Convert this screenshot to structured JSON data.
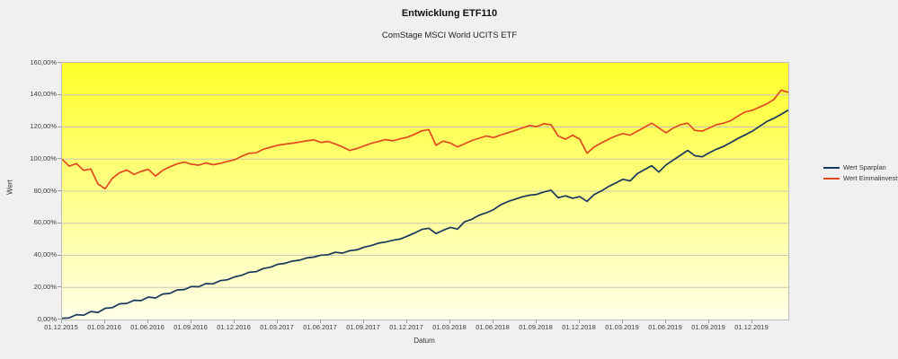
{
  "chart_data": {
    "type": "line",
    "title": "Entwicklung ETF110",
    "subtitle": "ComStage MSCI World UCITS ETF",
    "xlabel": "Datum",
    "ylabel": "Wert",
    "ylim": [
      0,
      160
    ],
    "grid": "horizontal-only",
    "legend_position": "right",
    "gridline_color": "#c9c9b8",
    "plot_background": {
      "top": "#ffff28",
      "bottom": "#ffffe8"
    },
    "y_tick_values": [
      0,
      20,
      40,
      60,
      80,
      100,
      120,
      140,
      160
    ],
    "y_tick_labels": [
      "0,00%",
      "20,00%",
      "40,00%",
      "60,00%",
      "80,00%",
      "100,00%",
      "120,00%",
      "140,00%",
      "160,00%"
    ],
    "x_tick_months": [
      0,
      3,
      6,
      9,
      12,
      15,
      18,
      21,
      24,
      27,
      30,
      33,
      36,
      39,
      42,
      45,
      48
    ],
    "x_tick_labels": [
      "01.12.2015",
      "01.03.2016",
      "01.06.2016",
      "01.09.2016",
      "01.12.2016",
      "01.03.2017",
      "01.06.2017",
      "01.09.2017",
      "01.12.2017",
      "01.03.2018",
      "01.06.2018",
      "01.09.2018",
      "01.12.2018",
      "01.03.2019",
      "01.06.2019",
      "01.09.2019",
      "01.12.2019"
    ],
    "x_unit": "months since 01.12.2015",
    "x_step": 0.5,
    "x_max": 50.5,
    "series": [
      {
        "id": "sparplan",
        "name": "Wert Sparplan",
        "color": "#17375d",
        "values": [
          0.8,
          1.0,
          3.0,
          2.7,
          5.0,
          4.4,
          7.0,
          7.4,
          9.8,
          10.0,
          12.0,
          11.8,
          14.0,
          13.4,
          15.9,
          16.3,
          18.4,
          18.7,
          20.6,
          20.4,
          22.4,
          22.2,
          24.2,
          24.8,
          26.6,
          27.6,
          29.4,
          29.8,
          31.8,
          32.6,
          34.4,
          35.0,
          36.4,
          36.9,
          38.4,
          38.9,
          40.1,
          40.4,
          41.9,
          41.4,
          42.9,
          43.4,
          45.1,
          46.1,
          47.6,
          48.3,
          49.4,
          50.1,
          51.9,
          53.9,
          56.1,
          56.9,
          53.6,
          55.6,
          57.4,
          56.4,
          61.0,
          62.5,
          65.0,
          66.5,
          68.5,
          71.5,
          73.5,
          75.0,
          76.5,
          77.5,
          78.0,
          79.5,
          80.6,
          75.9,
          77.1,
          75.6,
          76.6,
          73.6,
          77.9,
          80.1,
          82.9,
          85.1,
          87.4,
          86.4,
          90.9,
          93.4,
          95.9,
          91.9,
          96.4,
          99.4,
          102.4,
          105.4,
          102.1,
          101.4,
          103.9,
          106.1,
          107.9,
          110.4,
          112.9,
          115.1,
          117.4,
          120.4,
          123.4,
          125.4,
          127.9,
          130.6
        ]
      },
      {
        "id": "einmalinvest",
        "name": "Wert Einmalinvest",
        "color": "#e04a1e",
        "values": [
          100,
          95.6,
          97.2,
          93.0,
          93.8,
          84.5,
          81.5,
          88.0,
          91.5,
          93.2,
          90.4,
          92.3,
          93.6,
          89.4,
          93.0,
          95.2,
          97.0,
          98.1,
          96.8,
          96.2,
          97.6,
          96.5,
          97.3,
          98.6,
          99.6,
          101.8,
          103.6,
          103.9,
          106.1,
          107.4,
          108.6,
          109.3,
          109.9,
          110.6,
          111.4,
          112.0,
          110.4,
          111.0,
          109.4,
          107.6,
          105.4,
          106.6,
          108.2,
          109.8,
          111.0,
          112.1,
          111.4,
          112.6,
          113.6,
          115.4,
          117.6,
          118.4,
          108.6,
          111.2,
          110.0,
          107.6,
          109.6,
          111.6,
          113.0,
          114.4,
          113.4,
          115.0,
          116.4,
          117.9,
          119.4,
          120.9,
          120.2,
          122.0,
          121.4,
          114.4,
          112.4,
          114.9,
          112.4,
          103.6,
          107.6,
          110.1,
          112.4,
          114.4,
          115.9,
          114.9,
          117.4,
          119.9,
          122.4,
          119.4,
          116.4,
          119.4,
          121.4,
          122.4,
          117.9,
          117.4,
          119.4,
          121.4,
          122.4,
          123.9,
          126.9,
          129.4,
          130.4,
          132.4,
          134.4,
          137.2,
          143.0,
          141.6
        ]
      }
    ]
  }
}
